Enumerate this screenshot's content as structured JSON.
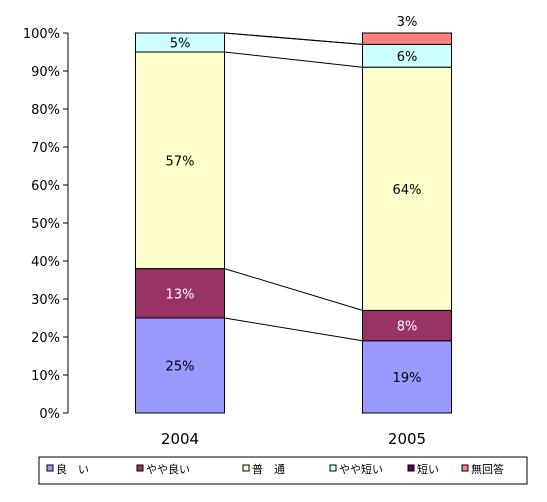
{
  "chart_data": {
    "type": "bar",
    "stacked": true,
    "normalized": true,
    "categories": [
      "2004",
      "2005"
    ],
    "ylim": [
      0,
      100
    ],
    "y_ticks": [
      "0%",
      "10%",
      "20%",
      "30%",
      "40%",
      "50%",
      "60%",
      "70%",
      "80%",
      "90%",
      "100%"
    ],
    "grid": false,
    "legend_position": "bottom",
    "series_connector_lines": true,
    "series": [
      {
        "name": "良　い",
        "color": "#9999ff",
        "values": [
          25,
          19
        ],
        "labels": [
          "25%",
          "19%"
        ]
      },
      {
        "name": "やや良い",
        "color": "#993366",
        "values": [
          13,
          8
        ],
        "labels": [
          "13%",
          "8%"
        ]
      },
      {
        "name": "普　通",
        "color": "#ffffcc",
        "values": [
          57,
          64
        ],
        "labels": [
          "57%",
          "64%"
        ]
      },
      {
        "name": "やや短い",
        "color": "#ccffff",
        "values": [
          5,
          6
        ],
        "labels": [
          "5%",
          "6%"
        ]
      },
      {
        "name": "短い",
        "color": "#660066",
        "values": [
          0,
          0
        ],
        "labels": [
          "",
          ""
        ]
      },
      {
        "name": "無回答",
        "color": "#ff8080",
        "values": [
          0,
          3
        ],
        "labels": [
          "",
          "3%"
        ]
      }
    ]
  }
}
